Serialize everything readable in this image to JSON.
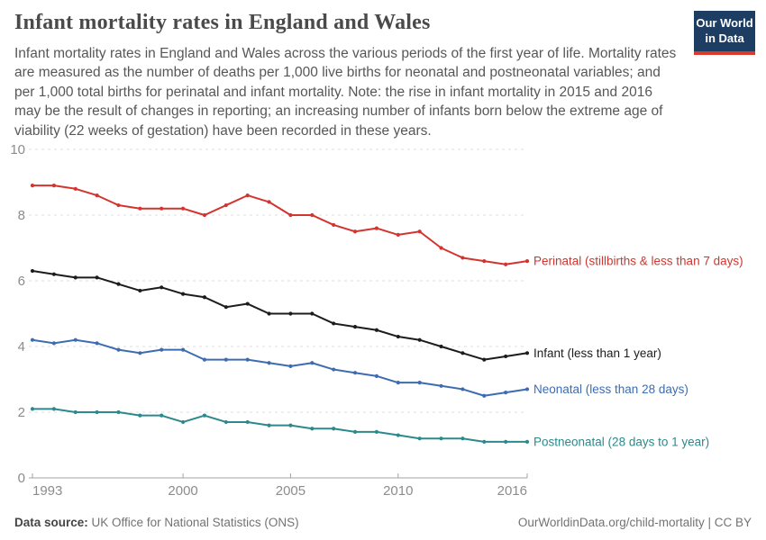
{
  "header": {
    "title": "Infant mortality rates in England and Wales",
    "subtitle": "Infant mortality rates in England and Wales across the various periods of the first year of life. Mortality rates are measured as the number of deaths per 1,000 live births for neonatal and postneonatal variables; and per 1,000 total births for perinatal and infant mortality. Note: the rise in infant mortality in 2015 and 2016 may be the result of changes in reporting; an increasing number of infants born below the extreme age of viability (22 weeks of gestation) have been recorded in these years."
  },
  "logo": {
    "line1": "Our World",
    "line2": "in Data",
    "bg_color": "#1d3d63",
    "bar_color": "#d93a2b"
  },
  "chart_data": {
    "type": "line",
    "x": [
      1993,
      1994,
      1995,
      1996,
      1997,
      1998,
      1999,
      2000,
      2001,
      2002,
      2003,
      2004,
      2005,
      2006,
      2007,
      2008,
      2009,
      2010,
      2011,
      2012,
      2013,
      2014,
      2015,
      2016
    ],
    "series": [
      {
        "name": "Perinatal",
        "label": "Perinatal (stillbirths & less than 7 days)",
        "color": "#d2352f",
        "values": [
          8.9,
          8.9,
          8.8,
          8.6,
          8.3,
          8.2,
          8.2,
          8.2,
          8.0,
          8.3,
          8.6,
          8.4,
          8.0,
          8.0,
          7.7,
          7.5,
          7.6,
          7.4,
          7.5,
          7.0,
          6.7,
          6.6,
          6.5,
          6.6
        ]
      },
      {
        "name": "Infant",
        "label": "Infant (less than 1 year)",
        "color": "#1c1c1c",
        "values": [
          6.3,
          6.2,
          6.1,
          6.1,
          5.9,
          5.7,
          5.8,
          5.6,
          5.5,
          5.2,
          5.3,
          5.0,
          5.0,
          5.0,
          4.7,
          4.6,
          4.5,
          4.3,
          4.2,
          4.0,
          3.8,
          3.6,
          3.7,
          3.8
        ]
      },
      {
        "name": "Neonatal",
        "label": "Neonatal (less than 28 days)",
        "color": "#3d6cb1",
        "values": [
          4.2,
          4.1,
          4.2,
          4.1,
          3.9,
          3.8,
          3.9,
          3.9,
          3.6,
          3.6,
          3.6,
          3.5,
          3.4,
          3.5,
          3.3,
          3.2,
          3.1,
          2.9,
          2.9,
          2.8,
          2.7,
          2.5,
          2.6,
          2.7
        ]
      },
      {
        "name": "Postneonatal",
        "label": "Postneonatal (28 days to 1 year)",
        "color": "#2c898c",
        "values": [
          2.1,
          2.1,
          2.0,
          2.0,
          2.0,
          1.9,
          1.9,
          1.7,
          1.9,
          1.7,
          1.7,
          1.6,
          1.6,
          1.5,
          1.5,
          1.4,
          1.4,
          1.3,
          1.2,
          1.2,
          1.2,
          1.1,
          1.1,
          1.1
        ]
      }
    ],
    "title": "Infant mortality rates in England and Wales",
    "xlabel": "",
    "ylabel": "",
    "ylim": [
      0,
      10
    ],
    "yticks": [
      0,
      2,
      4,
      6,
      8,
      10
    ],
    "xticks": [
      1993,
      2000,
      2005,
      2010,
      2016
    ],
    "grid": "horizontal-dashed",
    "legend_position": "right-of-line-end",
    "axis_color": "#a3a3a3",
    "grid_color": "#dcdcdc",
    "tick_label_color": "#8c8c8c"
  },
  "footer": {
    "source_label": "Data source:",
    "source_text": "UK Office for National Statistics (ONS)",
    "credit": "OurWorldinData.org/child-mortality | CC BY"
  }
}
